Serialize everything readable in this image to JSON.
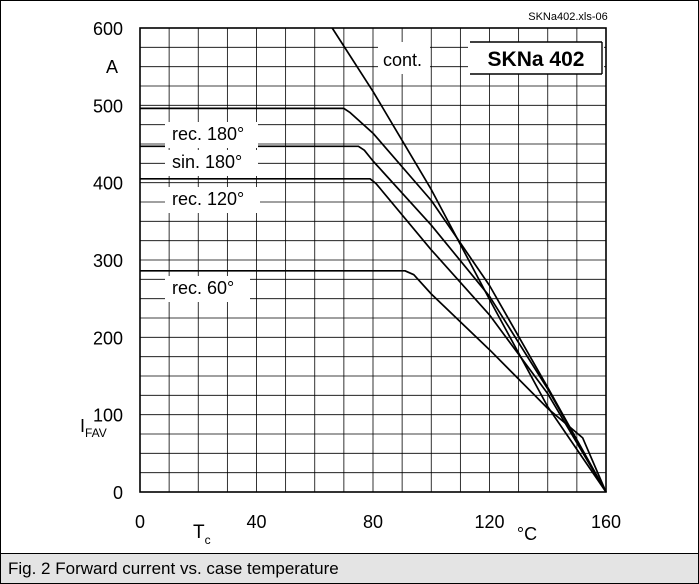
{
  "chart_data": {
    "type": "line",
    "source_tag": "SKNa402.xls-06",
    "product": "SKNa 402",
    "caption": "Fig. 2 Forward current vs. case temperature",
    "xlim": [
      0,
      160
    ],
    "ylim": [
      0,
      600
    ],
    "x_ticks": [
      {
        "value": 0,
        "label": "0"
      },
      {
        "value": 40,
        "label": "40"
      },
      {
        "value": 80,
        "label": "80"
      },
      {
        "value": 120,
        "label": "120"
      },
      {
        "value": 160,
        "label": "160"
      }
    ],
    "y_ticks": [
      {
        "value": 0,
        "label": "0"
      },
      {
        "value": 100,
        "label": "100"
      },
      {
        "value": 200,
        "label": "200"
      },
      {
        "value": 300,
        "label": "300"
      },
      {
        "value": 400,
        "label": "400"
      },
      {
        "value": 500,
        "label": "500"
      },
      {
        "value": 600,
        "label": "600"
      }
    ],
    "xlabel": {
      "main": "T",
      "sub": "c",
      "unit": "°C"
    },
    "ylabel": {
      "main": "I",
      "sub": "FAV",
      "unit": "A"
    },
    "grid": true,
    "series": [
      {
        "name": "cont.",
        "x": [
          66,
          80,
          100,
          120,
          140,
          160
        ],
        "y": [
          600,
          518,
          391,
          249,
          110,
          0
        ]
      },
      {
        "name": "rec. 180°",
        "x": [
          0,
          70,
          72,
          80,
          100,
          120,
          140,
          160
        ],
        "y": [
          496,
          496,
          491,
          464,
          377,
          267,
          135,
          0
        ]
      },
      {
        "name": "sin. 180°",
        "x": [
          0,
          75,
          77,
          80,
          100,
          120,
          140,
          160
        ],
        "y": [
          447,
          447,
          442,
          428,
          345,
          253,
          133,
          0
        ]
      },
      {
        "name": "rec. 120°",
        "x": [
          0,
          79,
          81,
          100,
          120,
          140,
          160
        ],
        "y": [
          405,
          405,
          399,
          313,
          229,
          127,
          0
        ]
      },
      {
        "name": "rec. 60°",
        "x": [
          0,
          91,
          94,
          100,
          120,
          140,
          152,
          160
        ],
        "y": [
          286,
          286,
          281,
          256,
          184,
          108,
          70,
          0
        ]
      }
    ]
  }
}
